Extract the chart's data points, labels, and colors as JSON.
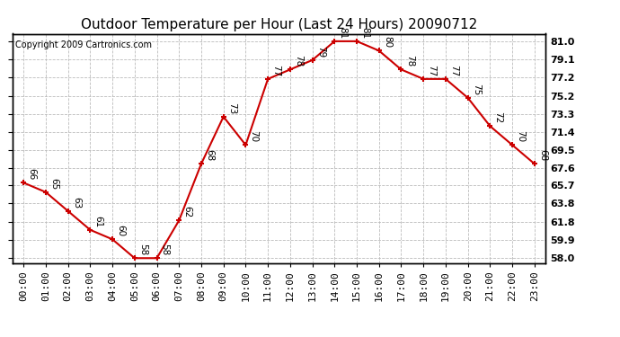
{
  "title": "Outdoor Temperature per Hour (Last 24 Hours) 20090712",
  "copyright": "Copyright 2009 Cartronics.com",
  "hours": [
    0,
    1,
    2,
    3,
    4,
    5,
    6,
    7,
    8,
    9,
    10,
    11,
    12,
    13,
    14,
    15,
    16,
    17,
    18,
    19,
    20,
    21,
    22,
    23
  ],
  "temps": [
    66,
    65,
    63,
    61,
    60,
    58,
    58,
    62,
    68,
    73,
    70,
    77,
    78,
    79,
    81,
    81,
    80,
    78,
    77,
    77,
    75,
    72,
    70,
    68
  ],
  "x_labels": [
    "00:00",
    "01:00",
    "02:00",
    "03:00",
    "04:00",
    "05:00",
    "06:00",
    "07:00",
    "08:00",
    "09:00",
    "10:00",
    "11:00",
    "12:00",
    "13:00",
    "14:00",
    "15:00",
    "16:00",
    "17:00",
    "18:00",
    "19:00",
    "20:00",
    "21:00",
    "22:00",
    "23:00"
  ],
  "y_ticks": [
    58.0,
    59.9,
    61.8,
    63.8,
    65.7,
    67.6,
    69.5,
    71.4,
    73.3,
    75.2,
    77.2,
    79.1,
    81.0
  ],
  "ylim": [
    57.5,
    81.8
  ],
  "line_color": "#cc0000",
  "marker_color": "#cc0000",
  "bg_color": "#ffffff",
  "grid_color": "#bbbbbb",
  "title_fontsize": 11,
  "tick_fontsize": 8,
  "annot_fontsize": 7.5,
  "copyright_fontsize": 7
}
